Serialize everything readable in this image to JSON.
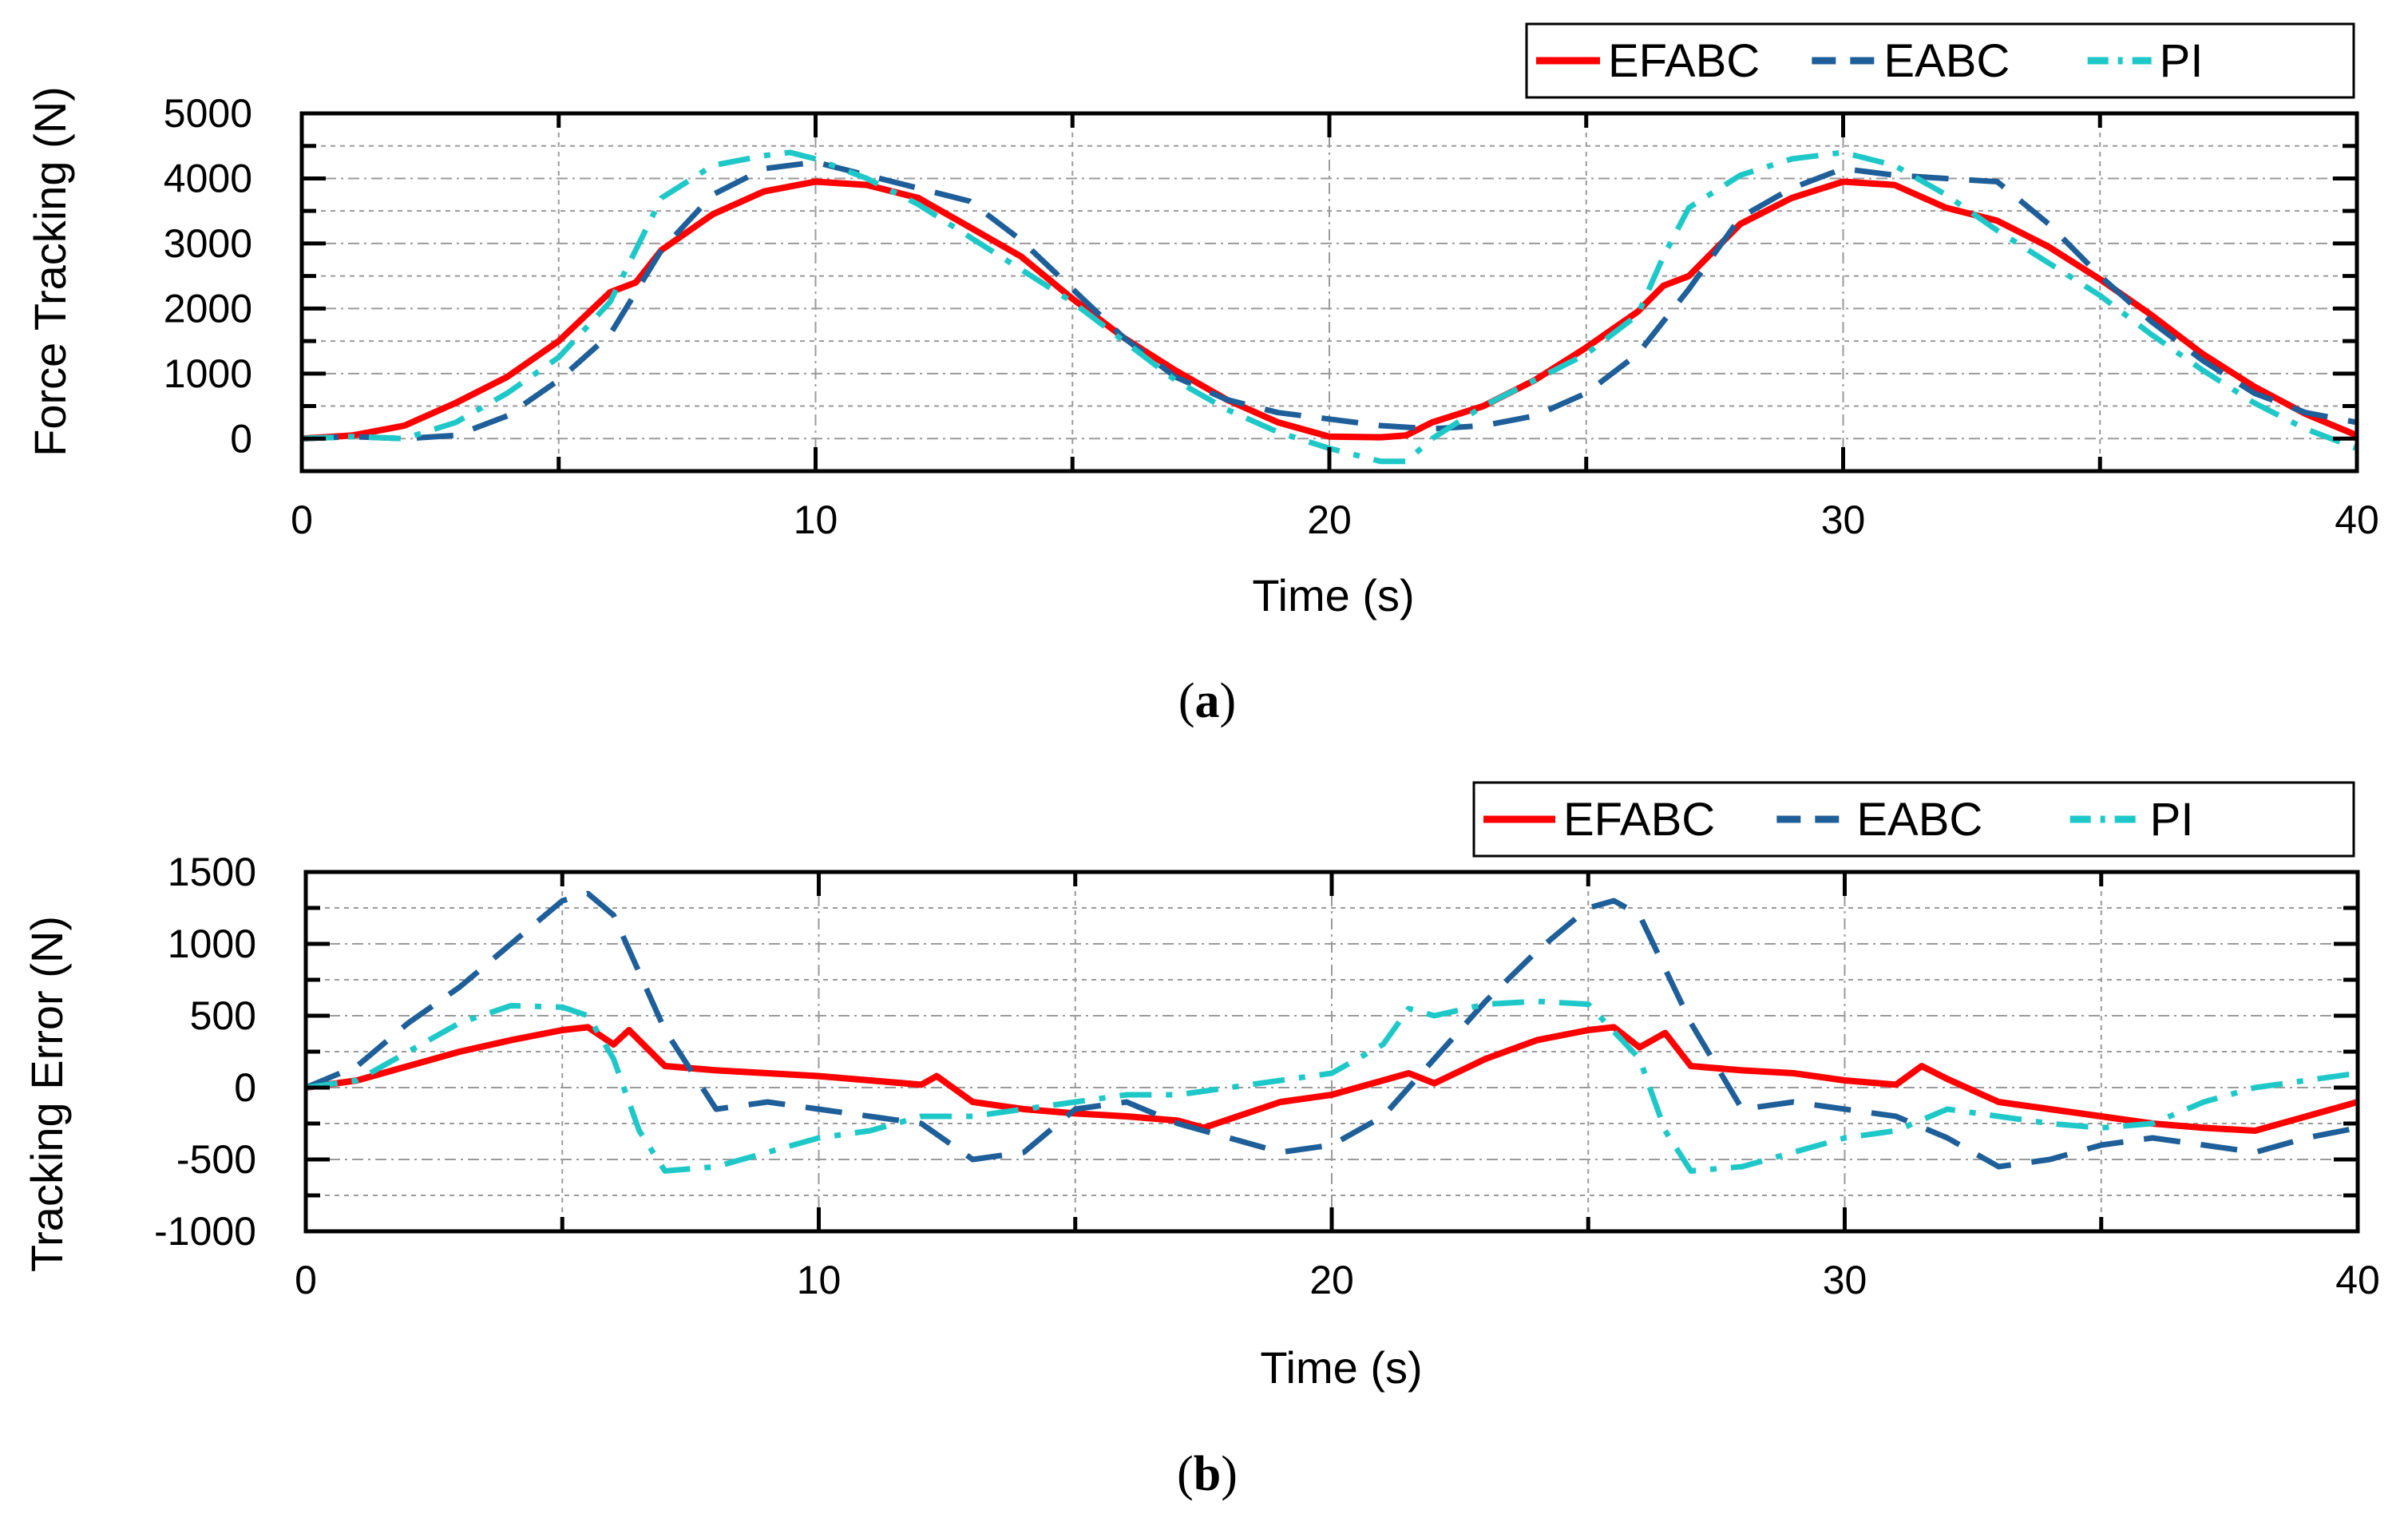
{
  "figure": {
    "captions": [
      "(a)",
      "(b)"
    ]
  },
  "colors": {
    "EFABC": "#ff0000",
    "EABC": "#1f5f99",
    "PI": "#1fc8c8",
    "grid": "#9a9a9a",
    "axis": "#000000"
  },
  "chart_data": [
    {
      "type": "line",
      "panel": "a",
      "title": "",
      "xlabel": "Time (s)",
      "ylabel": "Force Tracking (N)",
      "xlim": [
        0,
        40
      ],
      "ylim": [
        -500,
        5000
      ],
      "xticks": [
        0,
        10,
        20,
        30,
        40
      ],
      "yticks": [
        0,
        1000,
        2000,
        3000,
        4000,
        5000
      ],
      "grid": true,
      "legend_position": "top-right",
      "series": [
        {
          "name": "EFABC",
          "style": "solid",
          "x": [
            0,
            1,
            2,
            3,
            4,
            5,
            6,
            6.5,
            7,
            8,
            9,
            10,
            11,
            12,
            13,
            14,
            15,
            16,
            17,
            18,
            19,
            20,
            21,
            21.5,
            22,
            23,
            24,
            25,
            26,
            26.5,
            27,
            28,
            29,
            30,
            31,
            32,
            33,
            34,
            35,
            36,
            37,
            38,
            39,
            40
          ],
          "y": [
            0,
            50,
            200,
            550,
            950,
            1500,
            2250,
            2400,
            2900,
            3450,
            3800,
            3950,
            3900,
            3700,
            3250,
            2800,
            2150,
            1550,
            1050,
            600,
            250,
            30,
            20,
            50,
            250,
            500,
            900,
            1400,
            1950,
            2350,
            2500,
            3300,
            3700,
            3950,
            3900,
            3550,
            3350,
            2950,
            2450,
            1900,
            1300,
            800,
            380,
            50
          ]
        },
        {
          "name": "EABC",
          "style": "dashed",
          "x": [
            0,
            1,
            2,
            3,
            4,
            5,
            6,
            7,
            8,
            9,
            10,
            11,
            12,
            13,
            14,
            15,
            16,
            17,
            18,
            19,
            20,
            21,
            22,
            23,
            24,
            25,
            26,
            27,
            28,
            29,
            30,
            31,
            32,
            33,
            34,
            35,
            36,
            37,
            38,
            39,
            40
          ],
          "y": [
            0,
            30,
            0,
            50,
            350,
            900,
            1600,
            2900,
            3750,
            4150,
            4250,
            4050,
            3850,
            3650,
            3050,
            2300,
            1550,
            950,
            600,
            400,
            300,
            200,
            150,
            200,
            350,
            700,
            1300,
            2300,
            3400,
            3850,
            4150,
            4050,
            4000,
            3950,
            3300,
            2500,
            1800,
            1200,
            700,
            400,
            250
          ]
        },
        {
          "name": "PI",
          "style": "dashdot",
          "x": [
            0,
            1,
            2,
            3,
            4,
            5,
            6,
            6.5,
            7,
            8,
            9,
            9.5,
            10,
            11,
            12,
            13,
            14,
            15,
            16,
            17,
            18,
            19,
            20,
            21,
            21.5,
            22,
            23,
            24,
            25,
            26,
            26.5,
            27,
            28,
            29,
            30,
            31,
            32,
            33,
            34,
            35,
            36,
            37,
            38,
            39,
            40
          ],
          "y": [
            0,
            30,
            0,
            250,
            700,
            1250,
            2100,
            2900,
            3700,
            4200,
            4350,
            4400,
            4300,
            4000,
            3600,
            3100,
            2600,
            2100,
            1500,
            900,
            450,
            100,
            -150,
            -350,
            -350,
            0,
            500,
            900,
            1300,
            1900,
            2800,
            3550,
            4050,
            4300,
            4400,
            4200,
            3750,
            3200,
            2700,
            2200,
            1600,
            1050,
            550,
            150,
            -150
          ]
        }
      ]
    },
    {
      "type": "line",
      "panel": "b",
      "title": "",
      "xlabel": "Time (s)",
      "ylabel": "Tracking Error (N)",
      "xlim": [
        0,
        40
      ],
      "ylim": [
        -1000,
        1500
      ],
      "xticks": [
        0,
        10,
        20,
        30,
        40
      ],
      "yticks": [
        -1000,
        -500,
        0,
        500,
        1000,
        1500
      ],
      "grid": true,
      "legend_position": "top-right",
      "series": [
        {
          "name": "EFABC",
          "style": "solid",
          "x": [
            0,
            1,
            2,
            3,
            4,
            5,
            5.5,
            6,
            6.3,
            7,
            8,
            9,
            10,
            11,
            12,
            12.3,
            13,
            14,
            15,
            16,
            17,
            17.5,
            18,
            19,
            20,
            21,
            21.5,
            22,
            23,
            24,
            25,
            25.5,
            26,
            26.5,
            27,
            28,
            29,
            30,
            31,
            31.5,
            32,
            33,
            34,
            35,
            36,
            37,
            38,
            39,
            40
          ],
          "y": [
            0,
            50,
            150,
            250,
            330,
            400,
            420,
            300,
            400,
            150,
            120,
            100,
            80,
            50,
            20,
            80,
            -100,
            -150,
            -180,
            -200,
            -230,
            -280,
            -220,
            -100,
            -50,
            50,
            100,
            30,
            200,
            330,
            400,
            420,
            280,
            380,
            150,
            120,
            100,
            50,
            20,
            150,
            60,
            -100,
            -150,
            -200,
            -250,
            -280,
            -300,
            -200,
            -100
          ]
        },
        {
          "name": "EABC",
          "style": "dashed",
          "x": [
            0,
            1,
            2,
            3,
            4,
            5,
            5.5,
            6,
            7,
            8,
            9,
            10,
            11,
            12,
            13,
            14,
            15,
            16,
            17,
            18,
            19,
            20,
            21,
            22,
            23,
            24,
            25,
            25.5,
            26,
            27,
            28,
            29,
            30,
            31,
            32,
            33,
            34,
            35,
            36,
            37,
            38,
            39,
            40
          ],
          "y": [
            0,
            150,
            450,
            700,
            1000,
            1300,
            1350,
            1200,
            400,
            -150,
            -100,
            -150,
            -200,
            -250,
            -500,
            -450,
            -150,
            -100,
            -250,
            -350,
            -450,
            -400,
            -200,
            200,
            600,
            950,
            1250,
            1300,
            1200,
            450,
            -150,
            -100,
            -150,
            -200,
            -350,
            -550,
            -500,
            -400,
            -350,
            -400,
            -450,
            -350,
            -280
          ]
        },
        {
          "name": "PI",
          "style": "dashdot",
          "x": [
            0,
            1,
            2,
            3,
            4,
            5,
            5.5,
            6,
            6.5,
            7,
            8,
            9,
            10,
            11,
            12,
            13,
            14,
            15,
            16,
            17,
            18,
            19,
            20,
            21,
            21.5,
            22,
            23,
            24,
            25,
            26,
            26.5,
            27,
            28,
            29,
            30,
            31,
            32,
            33,
            34,
            35,
            36,
            37,
            38,
            39,
            40
          ],
          "y": [
            0,
            50,
            250,
            450,
            570,
            560,
            500,
            200,
            -300,
            -580,
            -550,
            -450,
            -350,
            -300,
            -200,
            -200,
            -150,
            -100,
            -50,
            -50,
            0,
            50,
            100,
            300,
            550,
            500,
            580,
            600,
            580,
            200,
            -300,
            -580,
            -550,
            -450,
            -350,
            -300,
            -150,
            -200,
            -250,
            -280,
            -250,
            -100,
            0,
            50,
            100
          ]
        }
      ]
    }
  ]
}
